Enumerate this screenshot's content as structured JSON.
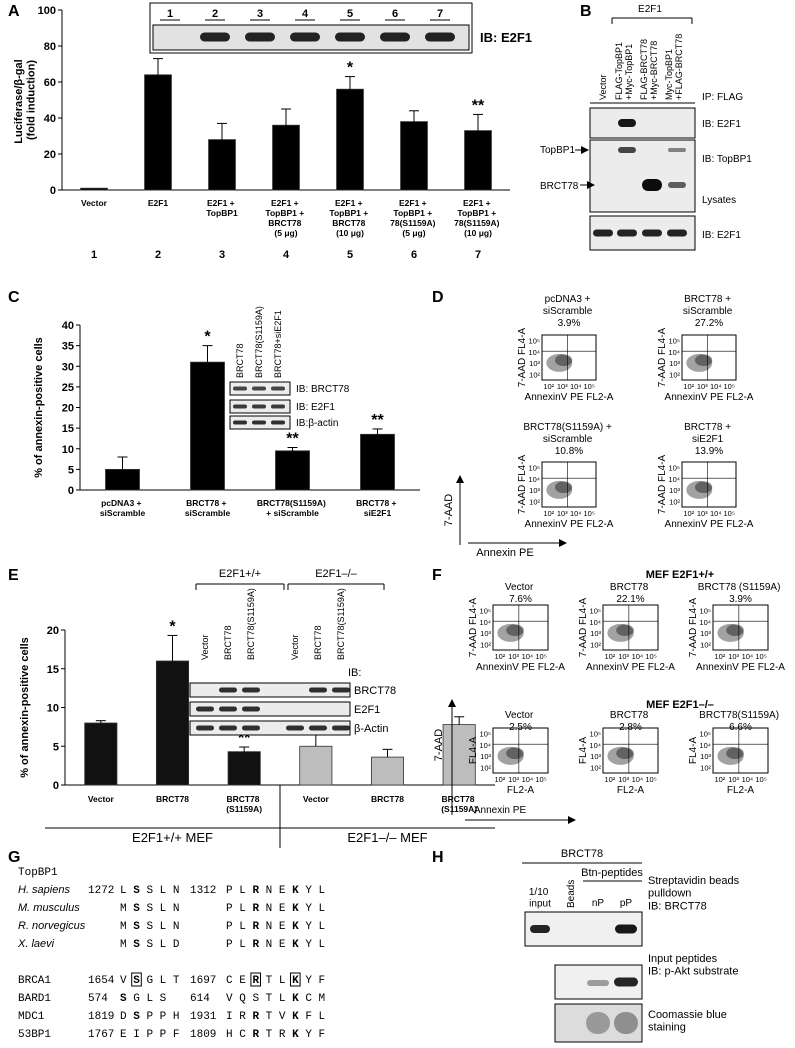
{
  "panel_labels": [
    "A",
    "B",
    "C",
    "D",
    "E",
    "F",
    "G",
    "H"
  ],
  "chart_data": [
    {
      "type": "bar",
      "ylabel": "Luciferase/β-gal\n(fold induction)",
      "categories": [
        "Vector",
        "E2F1",
        "E2F1 +\nTopBP1",
        "E2F1 +\nTopBP1 +\nBRCT78\n(5 μg)",
        "E2F1 +\nTopBP1 +\nBRCT78\n(10 μg)",
        "E2F1 +\nTopBP1 +\n78(S1159A)\n(5 μg)",
        "E2F1 +\nTopBP1 +\n78(S1159A)\n(10 μg)"
      ],
      "series": [
        {
          "color": "#000000",
          "values": [
            1,
            64,
            28,
            36,
            56,
            38,
            33
          ],
          "errors": [
            null,
            9,
            9,
            9,
            7,
            6,
            9
          ],
          "significance": [
            null,
            null,
            null,
            null,
            "*",
            null,
            "**"
          ]
        }
      ],
      "ylim": [
        0,
        100
      ],
      "yticks": [
        0,
        20,
        40,
        60,
        80,
        100
      ]
    },
    {
      "type": "bar",
      "ylabel": "% of annexin-positive cells",
      "categories": [
        "pcDNA3 +\nsiScramble",
        "BRCT78 +\nsiScramble",
        "BRCT78(S1159A)\n+ siScramble",
        "BRCT78 +\nsiE2F1"
      ],
      "series": [
        {
          "color": "#000000",
          "values": [
            5,
            31,
            9.5,
            13.5
          ],
          "errors": [
            3,
            4,
            0.8,
            1.3
          ],
          "significance": [
            null,
            "*",
            "**",
            "**"
          ]
        }
      ],
      "ylim": [
        0,
        40
      ],
      "yticks": [
        0,
        5,
        10,
        15,
        20,
        25,
        30,
        35,
        40
      ]
    },
    {
      "type": "bar",
      "ylabel": "% of annexin-positive cells",
      "categories": [
        "Vector",
        "BRCT78",
        "BRCT78\n(S1159A)",
        "Vector",
        "BRCT78",
        "BRCT78\n(S1159A)"
      ],
      "series": [
        {
          "name": "E2F1+/+ MEF",
          "color": "#111111",
          "values": [
            8,
            16,
            4.3,
            null,
            null,
            null
          ],
          "errors": [
            0.3,
            3.3,
            0.6,
            null,
            null,
            null
          ],
          "significance": [
            null,
            "*",
            "**",
            null,
            null,
            null
          ]
        },
        {
          "name": "E2F1–/– MEF",
          "color": "#bdbdbd",
          "values": [
            null,
            null,
            null,
            5,
            3.6,
            7.8
          ],
          "errors": [
            null,
            null,
            null,
            1.5,
            1,
            1
          ]
        }
      ],
      "ylim": [
        0,
        20
      ],
      "yticks": [
        0,
        5,
        10,
        15,
        20
      ]
    }
  ],
  "panel_a": {
    "blot_lanes": [
      "1",
      "2",
      "3",
      "4",
      "5",
      "6",
      "7"
    ],
    "blot_label": "IB:  E2F1",
    "lane_numbers": [
      "1",
      "2",
      "3",
      "4",
      "5",
      "6",
      "7"
    ]
  },
  "panel_b": {
    "group": "E2F1",
    "lanes": [
      "Vector",
      "FLAG-TopBP1\n+Myc-TopBP1",
      "FLAG-BRCT78\n+Myc-BRCT78",
      "Myc-TopBP1\n+FLAG-BRCT78"
    ],
    "ip": "IP: FLAG",
    "ib_e2f1": "IB: E2F1",
    "ib_topbp1": "IB: TopBP1",
    "arrow_topbp1": "TopBP1",
    "arrow_brct78": "BRCT78",
    "lysates": "Lysates",
    "lysate_ib": "IB: E2F1"
  },
  "panel_c": {
    "inset_lanes": [
      "BRCT78",
      "BRCT78(S1159A)",
      "BRCT78+siE2F1"
    ],
    "inset_rows": [
      "IB: BRCT78",
      "IB: E2F1",
      "IB:β-actin"
    ]
  },
  "panel_d": {
    "decades": [
      "10²",
      "10³",
      "10⁴",
      "10⁵"
    ],
    "y_arrow": "7-AAD",
    "x_arrow": "Annexin PE",
    "plots": [
      {
        "title": "pcDNA3 +\nsiScramble\n3.9%",
        "ylabel": "7-AAD FL4-A",
        "xlabel": "AnnexinV PE FL2-A"
      },
      {
        "title": "BRCT78 +\nsiScramble\n27.2%",
        "ylabel": "7-AAD FL4-A",
        "xlabel": "AnnexinV PE FL2-A"
      },
      {
        "title": "BRCT78(S1159A) +\nsiScramble\n10.8%",
        "ylabel": "7-AAD FL4-A",
        "xlabel": "AnnexinV PE FL2-A"
      },
      {
        "title": "BRCT78 +\nsiE2F1\n13.9%",
        "ylabel": "7-AAD FL4-A",
        "xlabel": "AnnexinV PE FL2-A"
      }
    ]
  },
  "panel_e": {
    "groups": [
      "E2F1+/+",
      "E2F1–/–"
    ],
    "lanes": [
      "Vector",
      "BRCT78",
      "BRCT78(S1159A)",
      "Vector",
      "BRCT78",
      "BRCT78(S1159A)"
    ],
    "ib": "IB:",
    "rows": [
      "BRCT78",
      "E2F1",
      "β-Actin"
    ]
  },
  "panel_f": {
    "headers": [
      "MEF  E2F1+/+",
      "MEF  E2F1–/–"
    ],
    "decades": [
      "10²",
      "10³",
      "10⁴",
      "10⁵"
    ],
    "y_arrow": "7-AAD",
    "x_arrow": "Annexin PE",
    "plots": [
      {
        "title": "Vector\n7.6%",
        "ylabel": "7-AAD FL4-A",
        "xlabel": "AnnexinV PE FL2-A"
      },
      {
        "title": "BRCT78\n22.1%",
        "ylabel": "7-AAD FL4-A",
        "xlabel": "AnnexinV PE FL2-A"
      },
      {
        "title": "BRCT78 (S1159A)\n3.9%",
        "ylabel": "7-AAD FL4-A",
        "xlabel": "AnnexinV PE FL2-A"
      },
      {
        "title": "Vector\n2.5%",
        "ylabel": "FL4-A",
        "xlabel": "FL2-A"
      },
      {
        "title": "BRCT78\n2.8%",
        "ylabel": "FL4-A",
        "xlabel": "FL2-A"
      },
      {
        "title": "BRCT78(S1159A)\n6.6%",
        "ylabel": "FL4-A",
        "xlabel": "FL2-A"
      }
    ]
  },
  "panel_g": {
    "title": "TopBP1",
    "rows": [
      {
        "name": "H. sapiens",
        "start1": "1272",
        "seq1": "L S S L N",
        "start2": "1312",
        "seq2": "P L R N E K Y L"
      },
      {
        "name": "M. musculus",
        "seq1": "M S S L N",
        "seq2": "P L R N E K Y L"
      },
      {
        "name": "R. norvegicus",
        "seq1": "M S S L N",
        "seq2": "P L R N E K Y L"
      },
      {
        "name": "X. laevi",
        "seq1": "M S S L D",
        "seq2": "P L R N E K Y L"
      },
      {
        "name": "BRCA1",
        "start1": "1654",
        "seq1": "V S G L T",
        "start2": "1697",
        "seq2": "C E R T L K Y F"
      },
      {
        "name": "BARD1",
        "start1": "574",
        "seq1": "S G L S",
        "start2": "614",
        "seq2": "V Q S T L K C M"
      },
      {
        "name": "MDC1",
        "start1": "1819",
        "seq1": "D S P P H",
        "start2": "1931",
        "seq2": "I R R T V K F L"
      },
      {
        "name": "53BP1",
        "start1": "1767",
        "seq1": "E I P P F",
        "start2": "1809",
        "seq2": "H C R T R K Y F"
      }
    ]
  },
  "panel_h": {
    "header": "BRCT78",
    "group": "Btn-peptides",
    "lanes": [
      "1/10\ninput",
      "Beads",
      "nP",
      "pP"
    ],
    "rows": [
      "Streptavidin beads\npulldown\nIB: BRCT78",
      "Input peptides\nIB: p-Akt substrate",
      "Coomassie blue\nstaining"
    ]
  }
}
